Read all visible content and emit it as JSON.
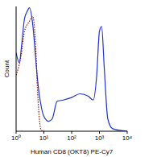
{
  "chart_data": {
    "type": "line",
    "x_label": "Human CD8 (OKT8) PE-Cy7",
    "y_label": "Count",
    "log": "x",
    "tick_labels": "x",
    "xlim": [
      1,
      10000
    ],
    "xticks": [
      {
        "value": 1,
        "label": "10⁰"
      },
      {
        "value": 10,
        "label": "10¹"
      },
      {
        "value": 100,
        "label": "10²"
      },
      {
        "value": 1000,
        "label": "10³"
      },
      {
        "value": 10000,
        "label": "10⁴"
      }
    ],
    "ylim": [
      0,
      100
    ],
    "series": [
      {
        "color": "#2233cc",
        "line_style": "solid",
        "x": [
          1,
          1.3,
          1.6,
          2,
          2.5,
          3,
          4,
          5,
          6,
          8,
          10,
          15,
          20,
          30,
          50,
          100,
          200,
          400,
          600,
          800,
          1000,
          1200,
          1500,
          2000,
          3000,
          10000
        ],
        "values": [
          63,
          55,
          70,
          90,
          96,
          99,
          85,
          60,
          40,
          20,
          12,
          8,
          10,
          24,
          25,
          27,
          30,
          28,
          25,
          45,
          80,
          84,
          50,
          10,
          2,
          0
        ]
      },
      {
        "color": "#8b1a1a",
        "line_style": "dotted",
        "x": [
          1,
          1.5,
          2,
          3,
          4,
          5,
          6,
          7,
          8,
          10
        ],
        "values": [
          45,
          60,
          80,
          88,
          92,
          70,
          30,
          8,
          1,
          0
        ]
      }
    ]
  }
}
